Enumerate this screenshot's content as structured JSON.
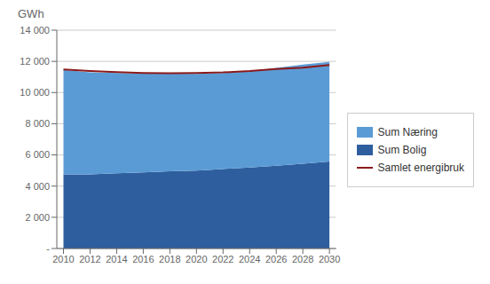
{
  "chart_data": {
    "type": "area",
    "ylabel": "GWh",
    "x": [
      2010,
      2012,
      2014,
      2016,
      2018,
      2020,
      2022,
      2024,
      2026,
      2028,
      2030
    ],
    "series": [
      {
        "name": "Sum Bolig",
        "color": "#2E5E9E",
        "values": [
          4750,
          4750,
          4820,
          4880,
          4950,
          5000,
          5100,
          5200,
          5300,
          5430,
          5580
        ]
      },
      {
        "name": "Sum Næring",
        "color": "#5B9BD5",
        "values": [
          6700,
          6550,
          6430,
          6330,
          6270,
          6200,
          6150,
          6170,
          6280,
          6370,
          6380
        ]
      },
      {
        "name": "Samlet energibruk",
        "color": "#8B1A1A",
        "type": "line",
        "values": [
          11480,
          11380,
          11310,
          11260,
          11240,
          11250,
          11290,
          11380,
          11510,
          11600,
          11760
        ]
      }
    ],
    "stacked": true,
    "xlim": [
      2009.5,
      2030.5
    ],
    "xticks": [
      2010,
      2012,
      2014,
      2016,
      2018,
      2020,
      2022,
      2024,
      2026,
      2028,
      2030
    ],
    "ylim": [
      0,
      14000
    ],
    "yticks": [
      {
        "value": 0,
        "label": "-"
      },
      {
        "value": 2000,
        "label": "2 000"
      },
      {
        "value": 4000,
        "label": "4 000"
      },
      {
        "value": 6000,
        "label": "6 000"
      },
      {
        "value": 8000,
        "label": "8 000"
      },
      {
        "value": 10000,
        "label": "10 000"
      },
      {
        "value": 12000,
        "label": "12 000"
      },
      {
        "value": 14000,
        "label": "14 000"
      }
    ],
    "grid": true,
    "legend": "right"
  }
}
